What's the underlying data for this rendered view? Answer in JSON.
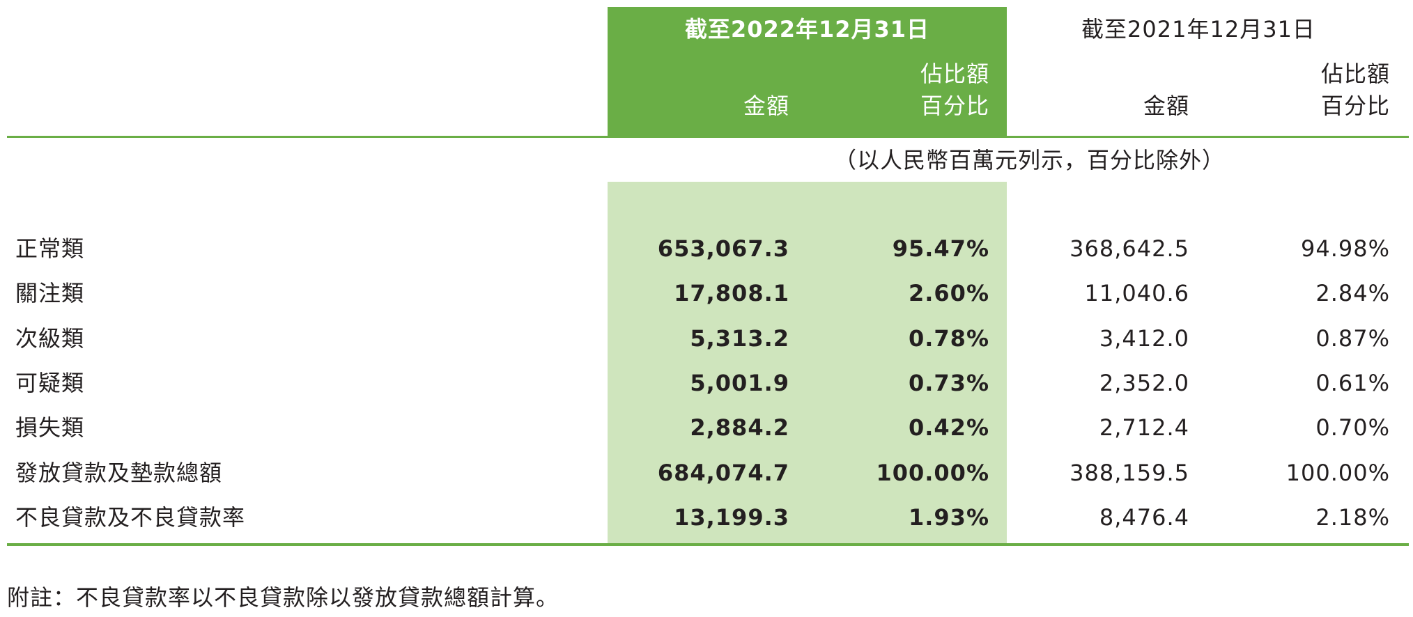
{
  "header": {
    "period_2022": "截至2022年12月31日",
    "period_2021": "截至2021年12月31日",
    "amount_label": "金額",
    "pct_label_line1": "佔比額",
    "pct_label_line2": "百分比"
  },
  "unit_note": "（以人民幣百萬元列示，百分比除外）",
  "rows": [
    {
      "label": "正常類",
      "amount_2022": "653,067.3",
      "pct_2022": "95.47%",
      "amount_2021": "368,642.5",
      "pct_2021": "94.98%"
    },
    {
      "label": "關注類",
      "amount_2022": "17,808.1",
      "pct_2022": "2.60%",
      "amount_2021": "11,040.6",
      "pct_2021": "2.84%"
    },
    {
      "label": "次級類",
      "amount_2022": "5,313.2",
      "pct_2022": "0.78%",
      "amount_2021": "3,412.0",
      "pct_2021": "0.87%"
    },
    {
      "label": "可疑類",
      "amount_2022": "5,001.9",
      "pct_2022": "0.73%",
      "amount_2021": "2,352.0",
      "pct_2021": "0.61%"
    },
    {
      "label": "損失類",
      "amount_2022": "2,884.2",
      "pct_2022": "0.42%",
      "amount_2021": "2,712.4",
      "pct_2021": "0.70%"
    },
    {
      "label": "發放貸款及墊款總額",
      "amount_2022": "684,074.7",
      "pct_2022": "100.00%",
      "amount_2021": "388,159.5",
      "pct_2021": "100.00%"
    },
    {
      "label": "不良貸款及不良貸款率",
      "amount_2022": "13,199.3",
      "pct_2022": "1.93%",
      "amount_2021": "8,476.4",
      "pct_2021": "2.18%"
    }
  ],
  "footnote": "附註：不良貸款率以不良貸款除以發放貸款總額計算。",
  "colors": {
    "accent_green": "#6aae46",
    "light_green": "#cfe5bd"
  }
}
